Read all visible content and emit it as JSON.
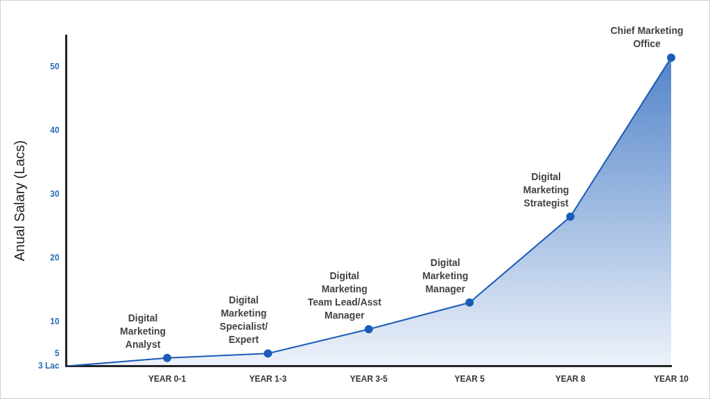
{
  "chart_data": {
    "type": "line",
    "y_label": "Anual Salary (Lacs)",
    "categories": [
      null,
      "YEAR 0-1",
      "YEAR 1-3",
      "YEAR 3-5",
      "YEAR 5",
      "YEAR 8",
      "YEAR 10"
    ],
    "values": [
      3,
      4.3,
      5,
      8.8,
      13,
      26.5,
      51.5
    ],
    "color": "#1a5cb8",
    "marker": "circle",
    "ylim": [
      3,
      55
    ],
    "yticks": [
      {
        "value": 3,
        "label": "3 Lac"
      },
      5,
      10,
      20,
      30,
      40,
      50
    ],
    "grid": false,
    "annotations": [
      {
        "category": "YEAR 0-1",
        "text": "Digital\nMarketing\nAnalyst"
      },
      {
        "category": "YEAR 1-3",
        "text": "Digital\nMarketing\nSpecialist/\nExpert"
      },
      {
        "category": "YEAR 3-5",
        "text": "Digital\nMarketing\nTeam Lead/Asst\nManager"
      },
      {
        "category": "YEAR 5",
        "text": "Digital\nMarketing\nManager"
      },
      {
        "category": "YEAR 8",
        "text": "Digital\nMarketing\nStrategist"
      },
      {
        "category": "YEAR 10",
        "text": "Chief Marketing\nOffice"
      }
    ]
  }
}
